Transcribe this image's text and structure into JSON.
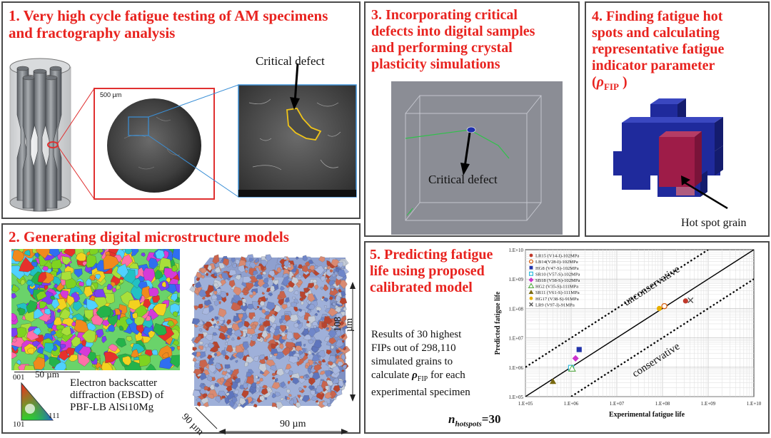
{
  "colors": {
    "title_red": "#e8231f",
    "border": "#4a4a4a",
    "zoom_red": "#e03030",
    "zoom_blue": "#3b8fd6",
    "grain_blue": "#1f2a9c",
    "grain_red": "#b51a3a",
    "bg": "#ffffff"
  },
  "panel1": {
    "title_line1": "1. Very high cycle fatigue testing of AM specimens",
    "title_line2": "and fractography analysis",
    "scale_label": "500 µm",
    "defect_label": "Critical defect"
  },
  "panel2": {
    "title": "2. Generating digital microstructure models",
    "scale_label": "50 µm",
    "ipf_labels": {
      "top": "001",
      "bottom_left": "101",
      "bottom_right": "111"
    },
    "caption_line1": "Electron backscatter",
    "caption_line2": "diffraction (EBSD) of",
    "caption_line3": "PBF-LB AlSi10Mg",
    "dim_height": "108 µm",
    "dim_depth": "90 µm",
    "dim_width": "90 µm"
  },
  "panel3": {
    "title_line1": "3. Incorporating critical",
    "title_line2": "defects into digital samples",
    "title_line3": "and performing crystal",
    "title_line4": "plasticity simulations",
    "defect_label": "Critical defect"
  },
  "panel4": {
    "title_line1": "4. Finding fatigue hot",
    "title_line2": "spots and  calculating",
    "title_line3": "representative fatigue",
    "title_line4": "indicator parameter",
    "rho_symbol": "ρ",
    "rho_sub": "FIP",
    "close_paren": ")",
    "open_paren": "(",
    "hotspot_label": "Hot spot grain"
  },
  "panel5": {
    "title_line1": "5. Predicting fatigue",
    "title_line2": "life using proposed",
    "title_line3": "calibrated model",
    "desc_line1": "Results of 30 highest",
    "desc_line2": "FIPs out of 298,110",
    "desc_line3": "simulated grains to",
    "desc_line4a": "calculate ",
    "desc_rho": "ρ",
    "desc_sub": "FIP",
    "desc_line4b": " for each",
    "desc_line5": "experimental specimen",
    "nhot_n": "n",
    "nhot_sub": "hotspots",
    "nhot_val": "=30"
  },
  "chart_data": {
    "type": "scatter",
    "xlabel": "Experimental fatigue life",
    "ylabel": "Predicted fatigue life",
    "x_scale": "log",
    "y_scale": "log",
    "xlim": [
      100000,
      10000000000
    ],
    "ylim": [
      100000,
      10000000000
    ],
    "x_ticks": [
      "1.E+05",
      "1.E+06",
      "1.E+07",
      "1.E+08",
      "1.E+09",
      "1.E+10"
    ],
    "y_ticks": [
      "1.E+05",
      "1.E+06",
      "1.E+07",
      "1.E+08",
      "1.E+09",
      "1.E+10"
    ],
    "grid": true,
    "legend_position": "top-left",
    "band_labels": {
      "upper": "unconservative",
      "lower": "conservative"
    },
    "series": [
      {
        "name": "LR15 (V14-I)-102MPa",
        "color": "#c0392b",
        "marker": "circle-filled",
        "points": [
          [
            320000000,
            180000000
          ]
        ]
      },
      {
        "name": "LB14(V28-I)-102MPa",
        "color": "#d35400",
        "marker": "circle-open",
        "points": [
          [
            110000000,
            120000000
          ]
        ]
      },
      {
        "name": "HG8 (V47-S)-102MPa",
        "color": "#2233aa",
        "marker": "square-filled",
        "points": [
          [
            1500000,
            4000000
          ]
        ]
      },
      {
        "name": "SR10 (V57-S)-102MPa",
        "color": "#33bbdd",
        "marker": "square-open",
        "points": [
          [
            1000000,
            950000
          ]
        ]
      },
      {
        "name": "SB18 (V58-S)-102MPa",
        "color": "#cc33cc",
        "marker": "diamond-filled",
        "points": [
          [
            1250000,
            2000000
          ]
        ]
      },
      {
        "name": "HG2 (V35-S)-111MPa",
        "color": "#55aa44",
        "marker": "triangle-open",
        "points": [
          [
            1050000,
            900000
          ]
        ]
      },
      {
        "name": "SR11 (V61-S)-111MPa",
        "color": "#7a6a10",
        "marker": "triangle-filled",
        "points": [
          [
            400000,
            330000
          ]
        ]
      },
      {
        "name": "HG17 (V38-S)-91MPa",
        "color": "#e8b000",
        "marker": "circle-filled",
        "points": [
          [
            85000000,
            100000000
          ]
        ]
      },
      {
        "name": "LR9 (V97-I)-91MPa",
        "color": "#555555",
        "marker": "x",
        "points": [
          [
            410000000,
            190000000
          ]
        ]
      }
    ]
  }
}
